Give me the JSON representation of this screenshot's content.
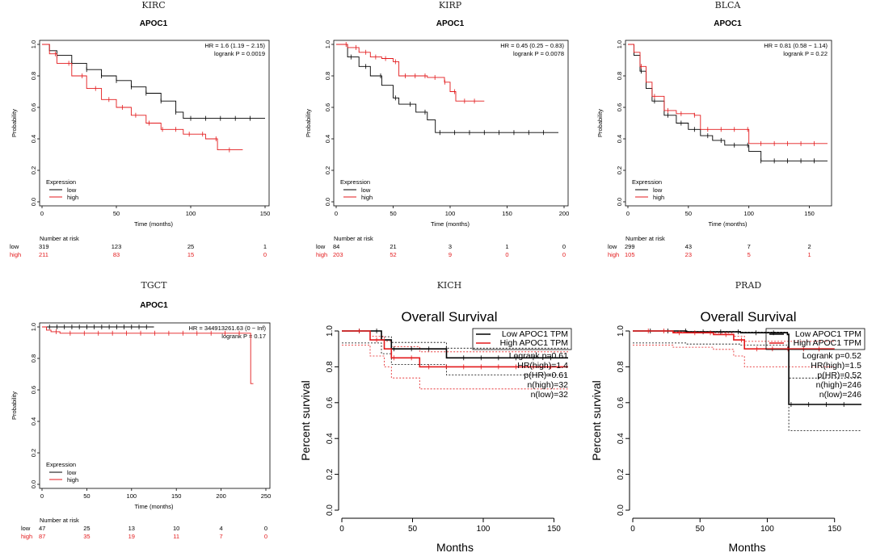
{
  "colors": {
    "low": "#000000",
    "high": "#e31a1c",
    "axis": "#000000"
  },
  "chart_data": [
    {
      "type": "line",
      "style": "km",
      "panel_title": "KIRC",
      "title": "APOC1",
      "xlabel": "Time (months)",
      "ylabel": "Probability",
      "xlim": [
        0,
        150
      ],
      "ylim": [
        0,
        1
      ],
      "xticks": [
        0,
        50,
        100,
        150
      ],
      "yticks": [
        0.0,
        0.2,
        0.4,
        0.6,
        0.8,
        1.0
      ],
      "yticks_text": [
        "0.0",
        "0.2",
        "0.4",
        "0.6",
        "0.8",
        "1.0"
      ],
      "hr_text": "HR = 1.6 (1.19 − 2.15)",
      "p_text": "logrank P = 0.0019",
      "legend_title": "Expression",
      "series": [
        {
          "name": "low",
          "color": "#000000",
          "points": [
            [
              0,
              1.0
            ],
            [
              5,
              0.96
            ],
            [
              10,
              0.93
            ],
            [
              20,
              0.88
            ],
            [
              30,
              0.84
            ],
            [
              40,
              0.8
            ],
            [
              50,
              0.77
            ],
            [
              60,
              0.73
            ],
            [
              70,
              0.69
            ],
            [
              80,
              0.64
            ],
            [
              90,
              0.57
            ],
            [
              95,
              0.53
            ],
            [
              150,
              0.53
            ]
          ]
        },
        {
          "name": "high",
          "color": "#e31a1c",
          "points": [
            [
              0,
              1.0
            ],
            [
              5,
              0.94
            ],
            [
              10,
              0.88
            ],
            [
              20,
              0.8
            ],
            [
              30,
              0.72
            ],
            [
              40,
              0.65
            ],
            [
              50,
              0.6
            ],
            [
              60,
              0.55
            ],
            [
              70,
              0.5
            ],
            [
              80,
              0.46
            ],
            [
              95,
              0.43
            ],
            [
              110,
              0.4
            ],
            [
              118,
              0.33
            ],
            [
              135,
              0.33
            ]
          ]
        }
      ],
      "risk_title": "Number at risk",
      "risk_x": [
        0,
        50,
        100,
        150
      ],
      "risk_rows": [
        {
          "name": "low",
          "values": [
            "319",
            "123",
            "25",
            "1"
          ]
        },
        {
          "name": "high",
          "values": [
            "211",
            "83",
            "15",
            "0"
          ]
        }
      ]
    },
    {
      "type": "line",
      "style": "km",
      "panel_title": "KIRP",
      "title": "APOC1",
      "xlabel": "Time (months)",
      "ylabel": "Probability",
      "xlim": [
        0,
        200
      ],
      "ylim": [
        0,
        1
      ],
      "xticks": [
        0,
        50,
        100,
        150,
        200
      ],
      "yticks": [
        0.0,
        0.2,
        0.4,
        0.6,
        0.8,
        1.0
      ],
      "yticks_text": [
        "0.0",
        "0.2",
        "0.4",
        "0.6",
        "0.8",
        "1.0"
      ],
      "hr_text": "HR = 0.45 (0.25 − 0.83)",
      "p_text": "logrank P = 0.0078",
      "legend_title": "Expression",
      "series": [
        {
          "name": "low",
          "color": "#000000",
          "points": [
            [
              0,
              1.0
            ],
            [
              10,
              0.92
            ],
            [
              20,
              0.86
            ],
            [
              30,
              0.8
            ],
            [
              40,
              0.74
            ],
            [
              50,
              0.66
            ],
            [
              55,
              0.62
            ],
            [
              70,
              0.57
            ],
            [
              80,
              0.52
            ],
            [
              87,
              0.44
            ],
            [
              195,
              0.44
            ]
          ]
        },
        {
          "name": "high",
          "color": "#e31a1c",
          "points": [
            [
              0,
              1.0
            ],
            [
              10,
              0.98
            ],
            [
              20,
              0.95
            ],
            [
              30,
              0.92
            ],
            [
              40,
              0.91
            ],
            [
              50,
              0.89
            ],
            [
              55,
              0.8
            ],
            [
              80,
              0.79
            ],
            [
              95,
              0.76
            ],
            [
              100,
              0.7
            ],
            [
              105,
              0.64
            ],
            [
              130,
              0.64
            ]
          ]
        }
      ],
      "risk_title": "Number at risk",
      "risk_x": [
        0,
        50,
        100,
        150,
        200
      ],
      "risk_rows": [
        {
          "name": "low",
          "values": [
            "84",
            "21",
            "3",
            "1",
            "0"
          ]
        },
        {
          "name": "high",
          "values": [
            "203",
            "52",
            "9",
            "0",
            "0"
          ]
        }
      ]
    },
    {
      "type": "line",
      "style": "km",
      "panel_title": "BLCA",
      "title": "APOC1",
      "xlabel": "Time (months)",
      "ylabel": "Probability",
      "xlim": [
        0,
        165
      ],
      "ylim": [
        0,
        1
      ],
      "xticks": [
        0,
        50,
        100,
        150
      ],
      "yticks": [
        0.0,
        0.2,
        0.4,
        0.6,
        0.8,
        1.0
      ],
      "yticks_text": [
        "0.0",
        "0.2",
        "0.4",
        "0.6",
        "0.8",
        "1.0"
      ],
      "hr_text": "HR = 0.81 (0.58 − 1.14)",
      "p_text": "logrank P = 0.22",
      "legend_title": "Expression",
      "series": [
        {
          "name": "low",
          "color": "#000000",
          "points": [
            [
              0,
              1.0
            ],
            [
              5,
              0.93
            ],
            [
              10,
              0.83
            ],
            [
              15,
              0.72
            ],
            [
              20,
              0.64
            ],
            [
              30,
              0.55
            ],
            [
              40,
              0.5
            ],
            [
              50,
              0.46
            ],
            [
              60,
              0.42
            ],
            [
              70,
              0.39
            ],
            [
              80,
              0.36
            ],
            [
              100,
              0.32
            ],
            [
              110,
              0.26
            ],
            [
              165,
              0.26
            ]
          ]
        },
        {
          "name": "high",
          "color": "#e31a1c",
          "points": [
            [
              0,
              1.0
            ],
            [
              5,
              0.95
            ],
            [
              10,
              0.86
            ],
            [
              15,
              0.76
            ],
            [
              20,
              0.67
            ],
            [
              30,
              0.58
            ],
            [
              40,
              0.56
            ],
            [
              55,
              0.55
            ],
            [
              60,
              0.46
            ],
            [
              99,
              0.46
            ],
            [
              100,
              0.37
            ],
            [
              165,
              0.37
            ]
          ]
        }
      ],
      "risk_title": "Number at risk",
      "risk_x": [
        0,
        50,
        100,
        150
      ],
      "risk_rows": [
        {
          "name": "low",
          "values": [
            "299",
            "43",
            "7",
            "2"
          ]
        },
        {
          "name": "high",
          "values": [
            "105",
            "23",
            "5",
            "1"
          ]
        }
      ]
    },
    {
      "type": "line",
      "style": "km",
      "panel_title": "TGCT",
      "title": "APOC1",
      "xlabel": "Time (months)",
      "ylabel": "Probability",
      "xlim": [
        0,
        250
      ],
      "ylim": [
        0,
        1
      ],
      "xticks": [
        0,
        50,
        100,
        150,
        200,
        250
      ],
      "yticks": [
        0.0,
        0.2,
        0.4,
        0.6,
        0.8,
        1.0
      ],
      "yticks_text": [
        "0.0",
        "0.2",
        "0.4",
        "0.6",
        "0.8",
        "1.0"
      ],
      "hr_text": "HR = 344913261.63 (0 − Inf)",
      "p_text": "logrank P = 0.17",
      "legend_title": "Expression",
      "series": [
        {
          "name": "low",
          "color": "#000000",
          "points": [
            [
              0,
              1.0
            ],
            [
              125,
              1.0
            ]
          ]
        },
        {
          "name": "high",
          "color": "#e31a1c",
          "points": [
            [
              0,
              1.0
            ],
            [
              5,
              0.98
            ],
            [
              10,
              0.97
            ],
            [
              20,
              0.96
            ],
            [
              232,
              0.96
            ],
            [
              233,
              0.64
            ],
            [
              236,
              0.64
            ]
          ]
        }
      ],
      "risk_title": "Number at risk",
      "risk_x": [
        0,
        50,
        100,
        150,
        200,
        250
      ],
      "risk_rows": [
        {
          "name": "low",
          "values": [
            "47",
            "25",
            "13",
            "10",
            "4",
            "0"
          ]
        },
        {
          "name": "high",
          "values": [
            "87",
            "35",
            "19",
            "11",
            "7",
            "0"
          ]
        }
      ]
    },
    {
      "type": "line",
      "style": "gepia",
      "panel_title": "KICH",
      "title": "Overall Survival",
      "xlabel": "Months",
      "ylabel": "Percent survival",
      "xlim": [
        0,
        160
      ],
      "ylim": [
        0,
        1
      ],
      "xticks": [
        0,
        50,
        100,
        150
      ],
      "yticks": [
        0.0,
        0.2,
        0.4,
        0.6,
        0.8,
        1.0
      ],
      "yticks_text": [
        "0.0",
        "0.2",
        "0.4",
        "0.6",
        "0.8",
        "1.0"
      ],
      "legend": [
        "Low APOC1 TPM",
        "High APOC1 TPM"
      ],
      "stats": [
        "Logrank p=0.61",
        "HR(high)=1.4",
        "p(HR)=0.61",
        "n(high)=32",
        "n(low)=32"
      ],
      "series": [
        {
          "name": "Low APOC1 TPM",
          "color": "#000000",
          "points": [
            [
              0,
              1.0
            ],
            [
              25,
              1.0
            ],
            [
              28,
              0.95
            ],
            [
              35,
              0.9
            ],
            [
              72,
              0.9
            ],
            [
              74,
              0.85
            ],
            [
              160,
              0.85
            ]
          ]
        },
        {
          "name": "High APOC1 TPM",
          "color": "#e31a1c",
          "points": [
            [
              0,
              1.0
            ],
            [
              15,
              1.0
            ],
            [
              20,
              0.95
            ],
            [
              30,
              0.9
            ],
            [
              35,
              0.85
            ],
            [
              55,
              0.8
            ],
            [
              160,
              0.8
            ]
          ]
        }
      ]
    },
    {
      "type": "line",
      "style": "gepia",
      "panel_title": "PRAD",
      "title": "Overall Survival",
      "xlabel": "Months",
      "ylabel": "Percent survival",
      "xlim": [
        0,
        170
      ],
      "ylim": [
        0,
        1
      ],
      "xticks": [
        0,
        50,
        100,
        150
      ],
      "yticks": [
        0.0,
        0.2,
        0.4,
        0.6,
        0.8,
        1.0
      ],
      "yticks_text": [
        "0.0",
        "0.2",
        "0.4",
        "0.6",
        "0.8",
        "1.0"
      ],
      "legend": [
        "Low APOC1 TPM",
        "High APOC1 TPM"
      ],
      "stats": [
        "Logrank p=0.52",
        "HR(high)=1.5",
        "p(HR)=0.52",
        "n(high)=246",
        "n(low)=246"
      ],
      "series": [
        {
          "name": "Low APOC1 TPM",
          "color": "#000000",
          "points": [
            [
              0,
              1.0
            ],
            [
              40,
              0.995
            ],
            [
              80,
              0.99
            ],
            [
              115,
              0.98
            ],
            [
              116,
              0.59
            ],
            [
              170,
              0.59
            ]
          ]
        },
        {
          "name": "High APOC1 TPM",
          "color": "#e31a1c",
          "points": [
            [
              0,
              1.0
            ],
            [
              30,
              0.99
            ],
            [
              60,
              0.98
            ],
            [
              75,
              0.95
            ],
            [
              83,
              0.9
            ],
            [
              150,
              0.9
            ]
          ]
        }
      ]
    }
  ]
}
